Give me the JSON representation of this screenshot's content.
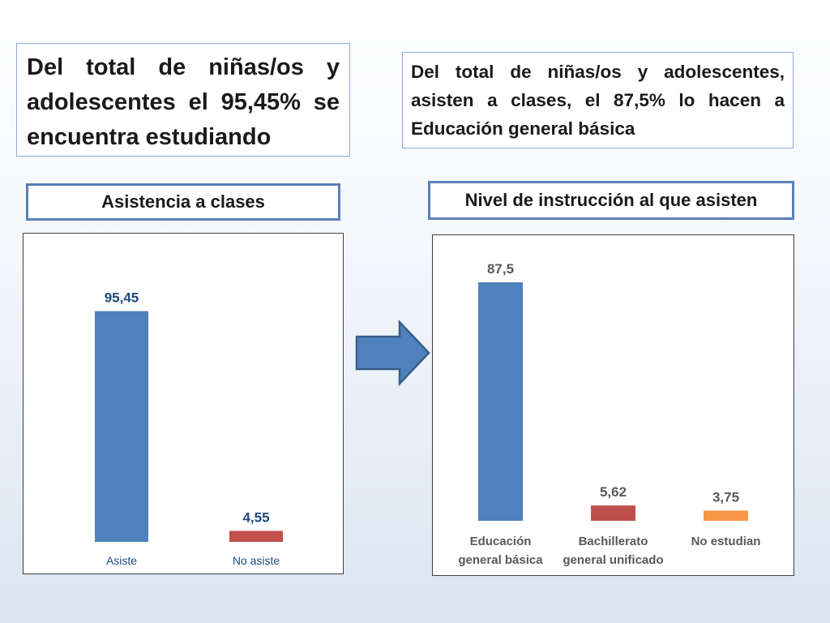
{
  "box_left": {
    "text": "Del total de niñas/os y adolescentes el 95,45% se encuentra estudiando"
  },
  "box_right": {
    "text": "Del total de niñas/os y adolescentes, asisten a clases, el 87,5% lo hacen a Educación general básica"
  },
  "colors": {
    "blue": "#4f81bd",
    "red": "#c0504d",
    "orange": "#f79646",
    "label_blue": "#1f497d",
    "label_gray": "#595959",
    "arrow_fill": "#4f81bd",
    "arrow_stroke": "#385d8a"
  },
  "chart_data": [
    {
      "type": "bar",
      "title": "Asistencia a clases",
      "categories": [
        "Asiste",
        "No asiste"
      ],
      "values": [
        95.45,
        4.55
      ],
      "value_labels": [
        "95,45",
        "4,55"
      ],
      "colors": [
        "#4f81bd",
        "#c0504d"
      ],
      "ylim": [
        0,
        100
      ],
      "grid": false,
      "legend": "none"
    },
    {
      "type": "bar",
      "title": "Nivel de instrucción al que asisten",
      "categories": [
        "Educación general básica",
        "Bachillerato general unificado",
        "No estudian"
      ],
      "category_lines": [
        [
          "Educación",
          "general básica"
        ],
        [
          "Bachillerato",
          "general unificado"
        ],
        [
          "No estudian"
        ]
      ],
      "values": [
        87.5,
        5.62,
        3.75
      ],
      "value_labels": [
        "87,5",
        "5,62",
        "3,75"
      ],
      "colors": [
        "#4f81bd",
        "#c0504d",
        "#f79646"
      ],
      "ylim": [
        0,
        100
      ],
      "grid": false,
      "legend": "none"
    }
  ]
}
